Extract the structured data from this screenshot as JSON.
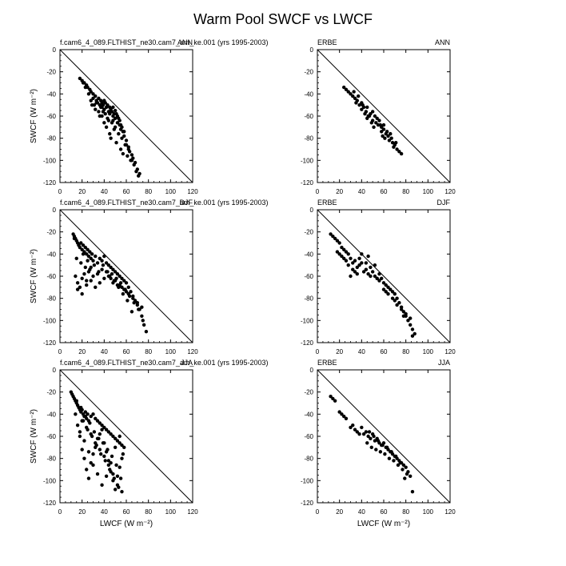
{
  "figure": {
    "title": "Warm Pool SWCF vs LWCF"
  },
  "chart_data": [
    {
      "type": "scatter",
      "left_label": "f.cam6_4_089.FLTHIST_ne30.cam7_am_ke.001 (yrs 1995-2003)",
      "right_label": "ANN",
      "xlabel": "",
      "ylabel": "SWCF (W m⁻²)",
      "xlim": [
        0,
        120
      ],
      "ylim": [
        -120,
        0
      ],
      "xticks": [
        0,
        20,
        40,
        60,
        80,
        100,
        120
      ],
      "yticks": [
        0,
        -20,
        -40,
        -60,
        -80,
        -100,
        -120
      ],
      "reference_line": [
        [
          0,
          0
        ],
        [
          120,
          -120
        ]
      ],
      "points_x": [
        18,
        20,
        22,
        24,
        25,
        27,
        28,
        30,
        30,
        32,
        33,
        34,
        35,
        36,
        37,
        38,
        38,
        39,
        40,
        40,
        41,
        42,
        43,
        44,
        45,
        45,
        46,
        47,
        48,
        48,
        49,
        50,
        50,
        51,
        52,
        52,
        53,
        54,
        55,
        55,
        56,
        57,
        58,
        60,
        62,
        65,
        68,
        70,
        72,
        28,
        31,
        35,
        38,
        41,
        44,
        47,
        50,
        53,
        56,
        60,
        63,
        66,
        58,
        54,
        48,
        36,
        32,
        29,
        42,
        45,
        40,
        46,
        51,
        55,
        57,
        64,
        61,
        67,
        69,
        71,
        49,
        43,
        39,
        37,
        33,
        26,
        23,
        21,
        59,
        62,
        65
      ],
      "points_y": [
        -26,
        -28,
        -30,
        -32,
        -34,
        -36,
        -38,
        -40,
        -44,
        -42,
        -46,
        -48,
        -44,
        -50,
        -46,
        -48,
        -52,
        -50,
        -46,
        -54,
        -48,
        -52,
        -50,
        -56,
        -52,
        -58,
        -54,
        -56,
        -60,
        -52,
        -58,
        -55,
        -62,
        -58,
        -60,
        -66,
        -62,
        -64,
        -68,
        -72,
        -70,
        -74,
        -78,
        -82,
        -88,
        -95,
        -102,
        -108,
        -112,
        -46,
        -50,
        -56,
        -60,
        -58,
        -64,
        -66,
        -70,
        -76,
        -80,
        -86,
        -92,
        -98,
        -74,
        -68,
        -64,
        -60,
        -54,
        -50,
        -70,
        -76,
        -66,
        -80,
        -84,
        -90,
        -94,
        -100,
        -96,
        -104,
        -110,
        -114,
        -72,
        -62,
        -56,
        -52,
        -48,
        -40,
        -34,
        -30,
        -86,
        -90,
        -100
      ]
    },
    {
      "type": "scatter",
      "left_label": "ERBE",
      "right_label": "ANN",
      "xlabel": "",
      "ylabel": "",
      "xlim": [
        0,
        120
      ],
      "ylim": [
        -120,
        0
      ],
      "xticks": [
        0,
        20,
        40,
        60,
        80,
        100,
        120
      ],
      "yticks": [
        0,
        -20,
        -40,
        -60,
        -80,
        -100,
        -120
      ],
      "reference_line": [
        [
          0,
          0
        ],
        [
          120,
          -120
        ]
      ],
      "points_x": [
        24,
        26,
        28,
        30,
        32,
        34,
        35,
        36,
        38,
        40,
        40,
        42,
        44,
        45,
        46,
        48,
        50,
        50,
        52,
        53,
        54,
        55,
        56,
        58,
        58,
        60,
        60,
        62,
        63,
        64,
        65,
        66,
        68,
        70,
        72,
        74,
        76,
        45,
        47,
        49,
        51,
        57,
        59,
        61,
        67,
        69,
        71,
        33,
        37,
        41,
        43
      ],
      "points_y": [
        -34,
        -36,
        -38,
        -40,
        -42,
        -44,
        -48,
        -46,
        -50,
        -48,
        -54,
        -52,
        -56,
        -52,
        -60,
        -58,
        -56,
        -64,
        -60,
        -66,
        -62,
        -68,
        -64,
        -70,
        -74,
        -68,
        -72,
        -76,
        -74,
        -78,
        -82,
        -76,
        -84,
        -86,
        -90,
        -92,
        -94,
        -62,
        -60,
        -66,
        -70,
        -68,
        -78,
        -80,
        -80,
        -88,
        -84,
        -38,
        -42,
        -50,
        -58
      ]
    },
    {
      "type": "scatter",
      "left_label": "f.cam6_4_089.FLTHIST_ne30.cam7_am_ke.001 (yrs 1995-2003)",
      "right_label": "DJF",
      "xlabel": "",
      "ylabel": "SWCF (W m⁻²)",
      "xlim": [
        0,
        120
      ],
      "ylim": [
        -120,
        0
      ],
      "xticks": [
        0,
        20,
        40,
        60,
        80,
        100,
        120
      ],
      "yticks": [
        0,
        -20,
        -40,
        -60,
        -80,
        -100,
        -120
      ],
      "reference_line": [
        [
          0,
          0
        ],
        [
          120,
          -120
        ]
      ],
      "points_x": [
        12,
        13,
        14,
        15,
        16,
        17,
        18,
        19,
        20,
        21,
        22,
        23,
        24,
        25,
        26,
        27,
        28,
        29,
        30,
        32,
        34,
        36,
        38,
        40,
        42,
        44,
        46,
        48,
        50,
        52,
        54,
        56,
        58,
        60,
        62,
        64,
        66,
        68,
        70,
        72,
        74,
        76,
        78,
        14,
        16,
        18,
        20,
        22,
        24,
        26,
        28,
        30,
        34,
        38,
        42,
        46,
        50,
        54,
        58,
        62,
        66,
        70,
        74,
        16,
        20,
        24,
        28,
        32,
        36,
        40,
        44,
        48,
        52,
        56,
        60,
        15,
        19,
        23,
        27,
        31,
        35,
        39,
        43,
        47,
        51,
        55,
        59,
        63,
        67,
        71,
        75,
        13,
        17,
        21,
        25,
        45,
        49,
        53,
        57,
        61,
        65
      ],
      "points_y": [
        -22,
        -24,
        -26,
        -28,
        -30,
        -32,
        -34,
        -30,
        -36,
        -32,
        -38,
        -34,
        -40,
        -36,
        -42,
        -38,
        -44,
        -40,
        -46,
        -42,
        -48,
        -44,
        -46,
        -42,
        -48,
        -50,
        -52,
        -54,
        -56,
        -58,
        -60,
        -62,
        -64,
        -66,
        -70,
        -74,
        -78,
        -82,
        -86,
        -90,
        -96,
        -104,
        -110,
        -60,
        -66,
        -70,
        -62,
        -58,
        -64,
        -56,
        -52,
        -60,
        -58,
        -54,
        -56,
        -62,
        -64,
        -68,
        -72,
        -76,
        -80,
        -84,
        -88,
        -72,
        -76,
        -68,
        -64,
        -70,
        -66,
        -62,
        -60,
        -66,
        -68,
        -70,
        -74,
        -44,
        -48,
        -52,
        -54,
        -50,
        -56,
        -50,
        -56,
        -58,
        -62,
        -66,
        -72,
        -78,
        -84,
        -90,
        -100,
        -26,
        -32,
        -40,
        -46,
        -60,
        -64,
        -70,
        -76,
        -82,
        -92
      ]
    },
    {
      "type": "scatter",
      "left_label": "ERBE",
      "right_label": "DJF",
      "xlabel": "",
      "ylabel": "",
      "xlim": [
        0,
        120
      ],
      "ylim": [
        -120,
        0
      ],
      "xticks": [
        0,
        20,
        40,
        60,
        80,
        100,
        120
      ],
      "yticks": [
        0,
        -20,
        -40,
        -60,
        -80,
        -100,
        -120
      ],
      "reference_line": [
        [
          0,
          0
        ],
        [
          120,
          -120
        ]
      ],
      "points_x": [
        12,
        14,
        16,
        18,
        20,
        22,
        24,
        26,
        28,
        30,
        30,
        32,
        34,
        36,
        38,
        40,
        42,
        44,
        46,
        48,
        50,
        52,
        54,
        56,
        58,
        60,
        62,
        64,
        66,
        68,
        70,
        72,
        74,
        76,
        78,
        80,
        82,
        84,
        86,
        88,
        20,
        24,
        28,
        32,
        36,
        40,
        44,
        48,
        52,
        56,
        60,
        64,
        68,
        72,
        76,
        80,
        84,
        18,
        22,
        26,
        34,
        38,
        46,
        54,
        62,
        70,
        78,
        86
      ],
      "points_y": [
        -22,
        -24,
        -26,
        -28,
        -30,
        -34,
        -36,
        -38,
        -40,
        -44,
        -60,
        -48,
        -46,
        -52,
        -50,
        -48,
        -56,
        -54,
        -58,
        -60,
        -56,
        -60,
        -62,
        -64,
        -62,
        -66,
        -68,
        -70,
        -72,
        -74,
        -76,
        -80,
        -84,
        -88,
        -92,
        -96,
        -100,
        -104,
        -108,
        -112,
        -40,
        -44,
        -50,
        -54,
        -58,
        -40,
        -48,
        -52,
        -50,
        -58,
        -72,
        -76,
        -80,
        -86,
        -90,
        -94,
        -98,
        -38,
        -42,
        -46,
        -56,
        -44,
        -42,
        -62,
        -74,
        -82,
        -96,
        -114
      ]
    },
    {
      "type": "scatter",
      "left_label": "f.cam6_4_089.FLTHIST_ne30.cam7_am_ke.001 (yrs 1995-2003)",
      "right_label": "JJA",
      "xlabel": "LWCF (W m⁻²)",
      "ylabel": "SWCF (W m⁻²)",
      "xlim": [
        0,
        120
      ],
      "ylim": [
        -120,
        0
      ],
      "xticks": [
        0,
        20,
        40,
        60,
        80,
        100,
        120
      ],
      "yticks": [
        0,
        -20,
        -40,
        -60,
        -80,
        -100,
        -120
      ],
      "reference_line": [
        [
          0,
          0
        ],
        [
          120,
          -120
        ]
      ],
      "points_x": [
        10,
        11,
        12,
        13,
        14,
        15,
        16,
        17,
        18,
        19,
        20,
        21,
        22,
        23,
        24,
        25,
        26,
        28,
        30,
        32,
        34,
        36,
        38,
        40,
        42,
        44,
        46,
        48,
        50,
        52,
        54,
        56,
        58,
        14,
        16,
        18,
        20,
        22,
        24,
        26,
        28,
        30,
        32,
        34,
        36,
        38,
        40,
        42,
        44,
        46,
        48,
        50,
        52,
        54,
        56,
        18,
        22,
        26,
        30,
        34,
        38,
        42,
        46,
        50,
        54,
        20,
        24,
        28,
        32,
        36,
        40,
        44,
        48,
        52,
        56,
        15,
        19,
        23,
        27,
        31,
        35,
        39,
        43,
        47,
        51,
        55,
        21,
        25,
        29,
        33,
        37,
        41,
        45,
        49,
        53,
        57
      ],
      "points_y": [
        -20,
        -22,
        -24,
        -26,
        -28,
        -30,
        -32,
        -34,
        -36,
        -38,
        -36,
        -40,
        -42,
        -38,
        -44,
        -40,
        -46,
        -42,
        -40,
        -44,
        -46,
        -48,
        -50,
        -52,
        -54,
        -56,
        -58,
        -60,
        -62,
        -64,
        -66,
        -68,
        -70,
        -40,
        -50,
        -60,
        -72,
        -80,
        -90,
        -98,
        -84,
        -76,
        -70,
        -62,
        -58,
        -54,
        -66,
        -74,
        -82,
        -92,
        -100,
        -108,
        -96,
        -88,
        -80,
        -56,
        -64,
        -74,
        -86,
        -94,
        -104,
        -96,
        -84,
        -70,
        -60,
        -46,
        -52,
        -58,
        -66,
        -72,
        -78,
        -86,
        -94,
        -104,
        -110,
        -28,
        -34,
        -42,
        -48,
        -56,
        -62,
        -66,
        -72,
        -78,
        -86,
        -98,
        -46,
        -54,
        -60,
        -68,
        -76,
        -82,
        -90,
        -98,
        -106,
        -76
      ]
    },
    {
      "type": "scatter",
      "left_label": "ERBE",
      "right_label": "JJA",
      "xlabel": "LWCF (W m⁻²)",
      "ylabel": "",
      "xlim": [
        0,
        120
      ],
      "ylim": [
        -120,
        0
      ],
      "xticks": [
        0,
        20,
        40,
        60,
        80,
        100,
        120
      ],
      "yticks": [
        0,
        -20,
        -40,
        -60,
        -80,
        -100,
        -120
      ],
      "reference_line": [
        [
          0,
          0
        ],
        [
          120,
          -120
        ]
      ],
      "points_x": [
        12,
        14,
        16,
        20,
        22,
        24,
        26,
        30,
        32,
        34,
        36,
        38,
        40,
        42,
        44,
        46,
        48,
        50,
        52,
        54,
        56,
        58,
        60,
        62,
        64,
        66,
        68,
        70,
        72,
        74,
        76,
        78,
        80,
        82,
        84,
        86,
        45,
        49,
        53,
        57,
        61,
        65,
        69,
        73,
        77,
        81,
        47,
        51,
        55,
        59,
        63,
        67,
        71,
        75,
        79
      ],
      "points_y": [
        -24,
        -26,
        -28,
        -38,
        -40,
        -42,
        -44,
        -52,
        -50,
        -54,
        -56,
        -58,
        -52,
        -58,
        -56,
        -60,
        -62,
        -58,
        -64,
        -62,
        -66,
        -68,
        -66,
        -70,
        -72,
        -74,
        -76,
        -78,
        -80,
        -82,
        -84,
        -86,
        -88,
        -92,
        -96,
        -110,
        -66,
        -70,
        -72,
        -74,
        -76,
        -80,
        -82,
        -86,
        -90,
        -94,
        -56,
        -60,
        -64,
        -68,
        -70,
        -74,
        -78,
        -84,
        -98
      ]
    }
  ]
}
